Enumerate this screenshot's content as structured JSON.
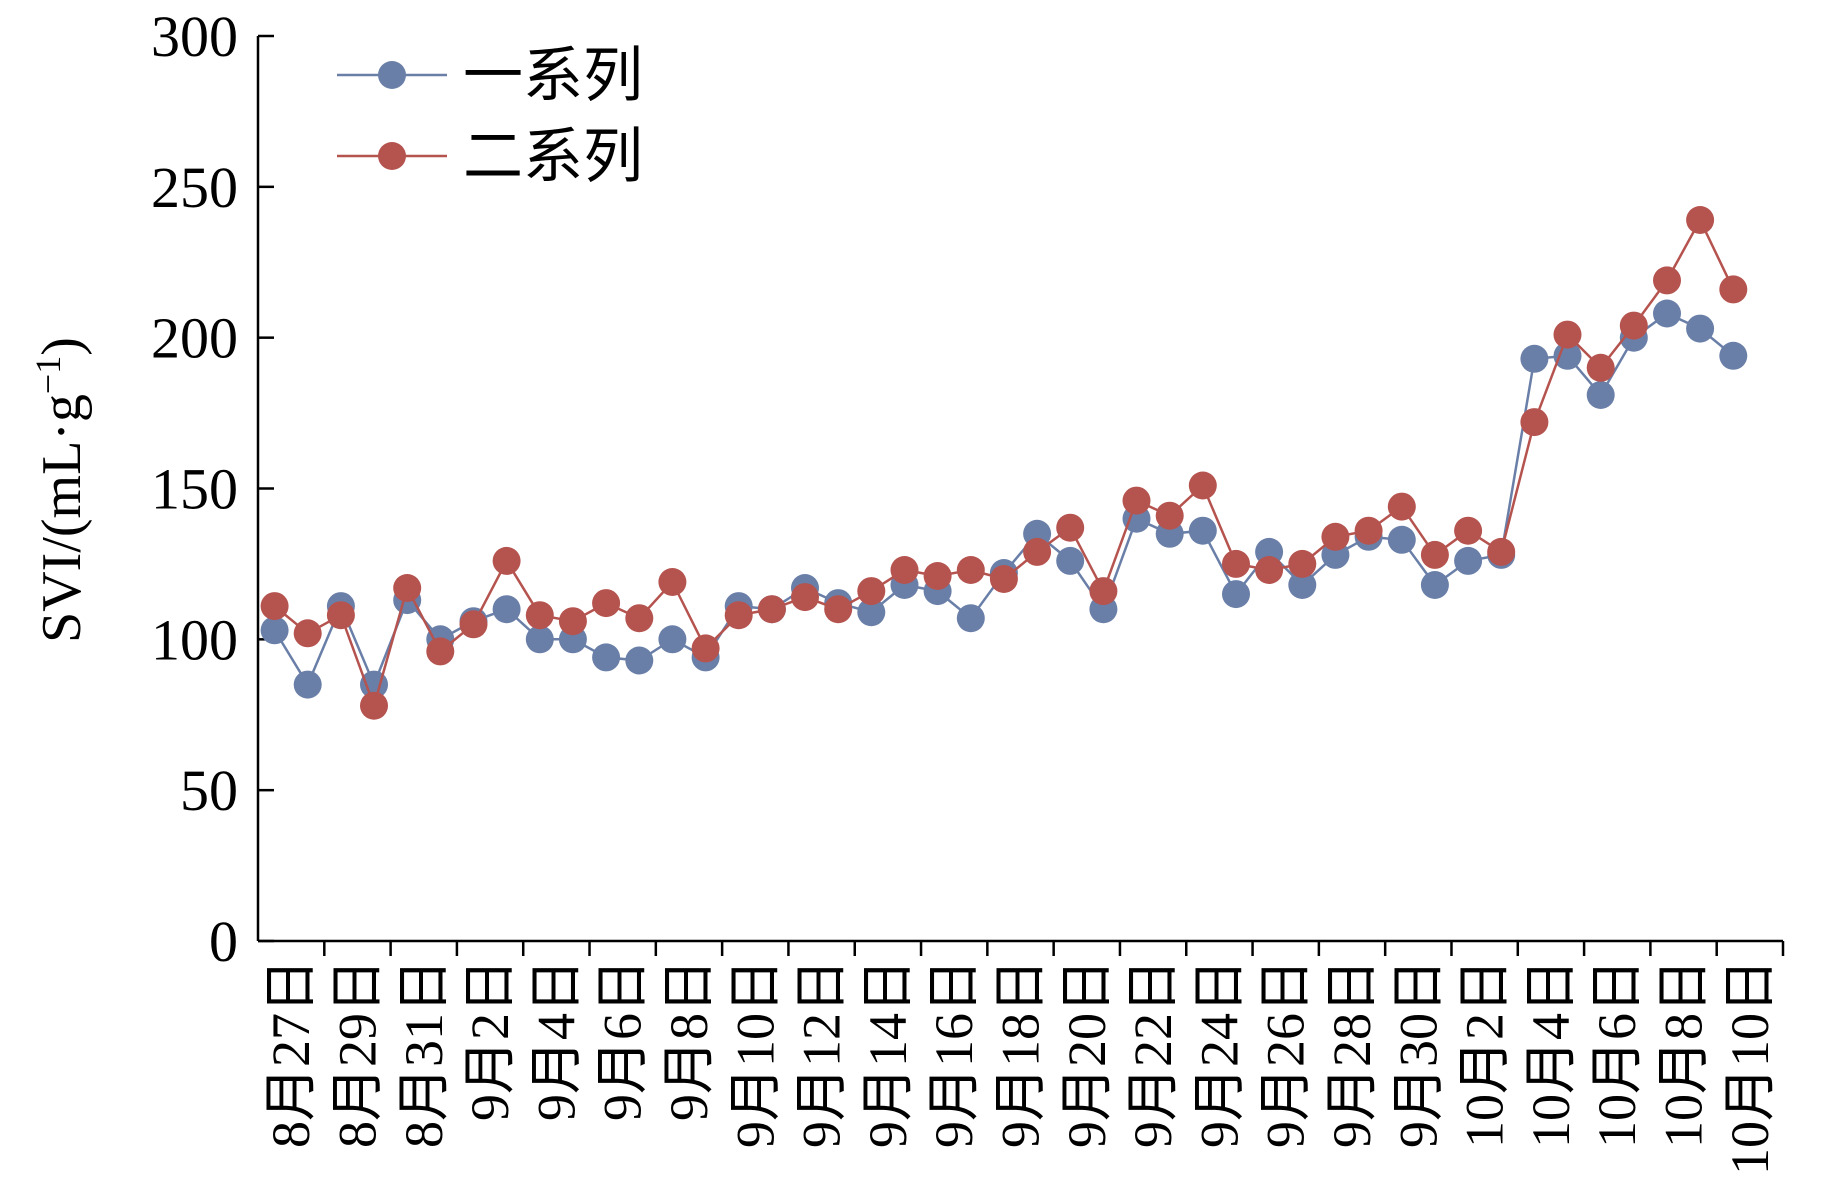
{
  "chart_data": {
    "type": "line",
    "title": "",
    "xlabel": "",
    "ylabel": "SVI/(mL·g⁻¹)",
    "ylabel_main": "SVI/(mL·g",
    "ylabel_sup": "−1",
    "ylabel_close": ")",
    "ylim": [
      0,
      300
    ],
    "yticks": [
      0,
      50,
      100,
      150,
      200,
      250,
      300
    ],
    "ytick_labels": [
      "0",
      "50",
      "100",
      "150",
      "200",
      "250",
      "300"
    ],
    "grid": false,
    "legend_position": "top-left",
    "x_tick_labels": [
      "8月27日",
      "8月29日",
      "8月31日",
      "9月2日",
      "9月4日",
      "9月6日",
      "9月8日",
      "9月10日",
      "9月12日",
      "9月14日",
      "9月16日",
      "9月18日",
      "9月20日",
      "9月22日",
      "9月24日",
      "9月26日",
      "9月28日",
      "9月30日",
      "10月2日",
      "10月4日",
      "10月6日",
      "10月8日",
      "10月10日"
    ],
    "x": [
      "8月27日",
      "8月28日",
      "8月29日",
      "8月30日",
      "8月31日",
      "9月1日",
      "9月2日",
      "9月3日",
      "9月4日",
      "9月5日",
      "9月6日",
      "9月7日",
      "9月8日",
      "9月9日",
      "9月10日",
      "9月11日",
      "9月12日",
      "9月13日",
      "9月14日",
      "9月15日",
      "9月16日",
      "9月17日",
      "9月18日",
      "9月19日",
      "9月20日",
      "9月21日",
      "9月22日",
      "9月23日",
      "9月24日",
      "9月25日",
      "9月26日",
      "9月27日",
      "9月28日",
      "9月29日",
      "9月30日",
      "10月1日",
      "10月2日",
      "10月3日",
      "10月4日",
      "10月5日",
      "10月6日",
      "10月7日",
      "10月8日",
      "10月9日",
      "10月10日",
      "10月11日"
    ],
    "series": [
      {
        "name": "一系列",
        "color": "#6a7fa8",
        "values": [
          103,
          85,
          111,
          85,
          113,
          100,
          106,
          110,
          100,
          100,
          94,
          93,
          100,
          94,
          111,
          110,
          117,
          112,
          109,
          118,
          116,
          107,
          122,
          135,
          126,
          110,
          140,
          135,
          136,
          115,
          129,
          118,
          128,
          134,
          133,
          118,
          126,
          128,
          193,
          194,
          181,
          200,
          208,
          203,
          194,
          null
        ]
      },
      {
        "name": "二系列",
        "color": "#b5534f",
        "values": [
          111,
          102,
          108,
          78,
          117,
          96,
          105,
          126,
          108,
          106,
          112,
          107,
          119,
          97,
          108,
          110,
          114,
          110,
          116,
          123,
          121,
          123,
          120,
          129,
          137,
          116,
          146,
          141,
          151,
          125,
          123,
          125,
          134,
          136,
          144,
          128,
          136,
          129,
          172,
          201,
          190,
          204,
          219,
          239,
          216,
          null
        ]
      }
    ]
  }
}
